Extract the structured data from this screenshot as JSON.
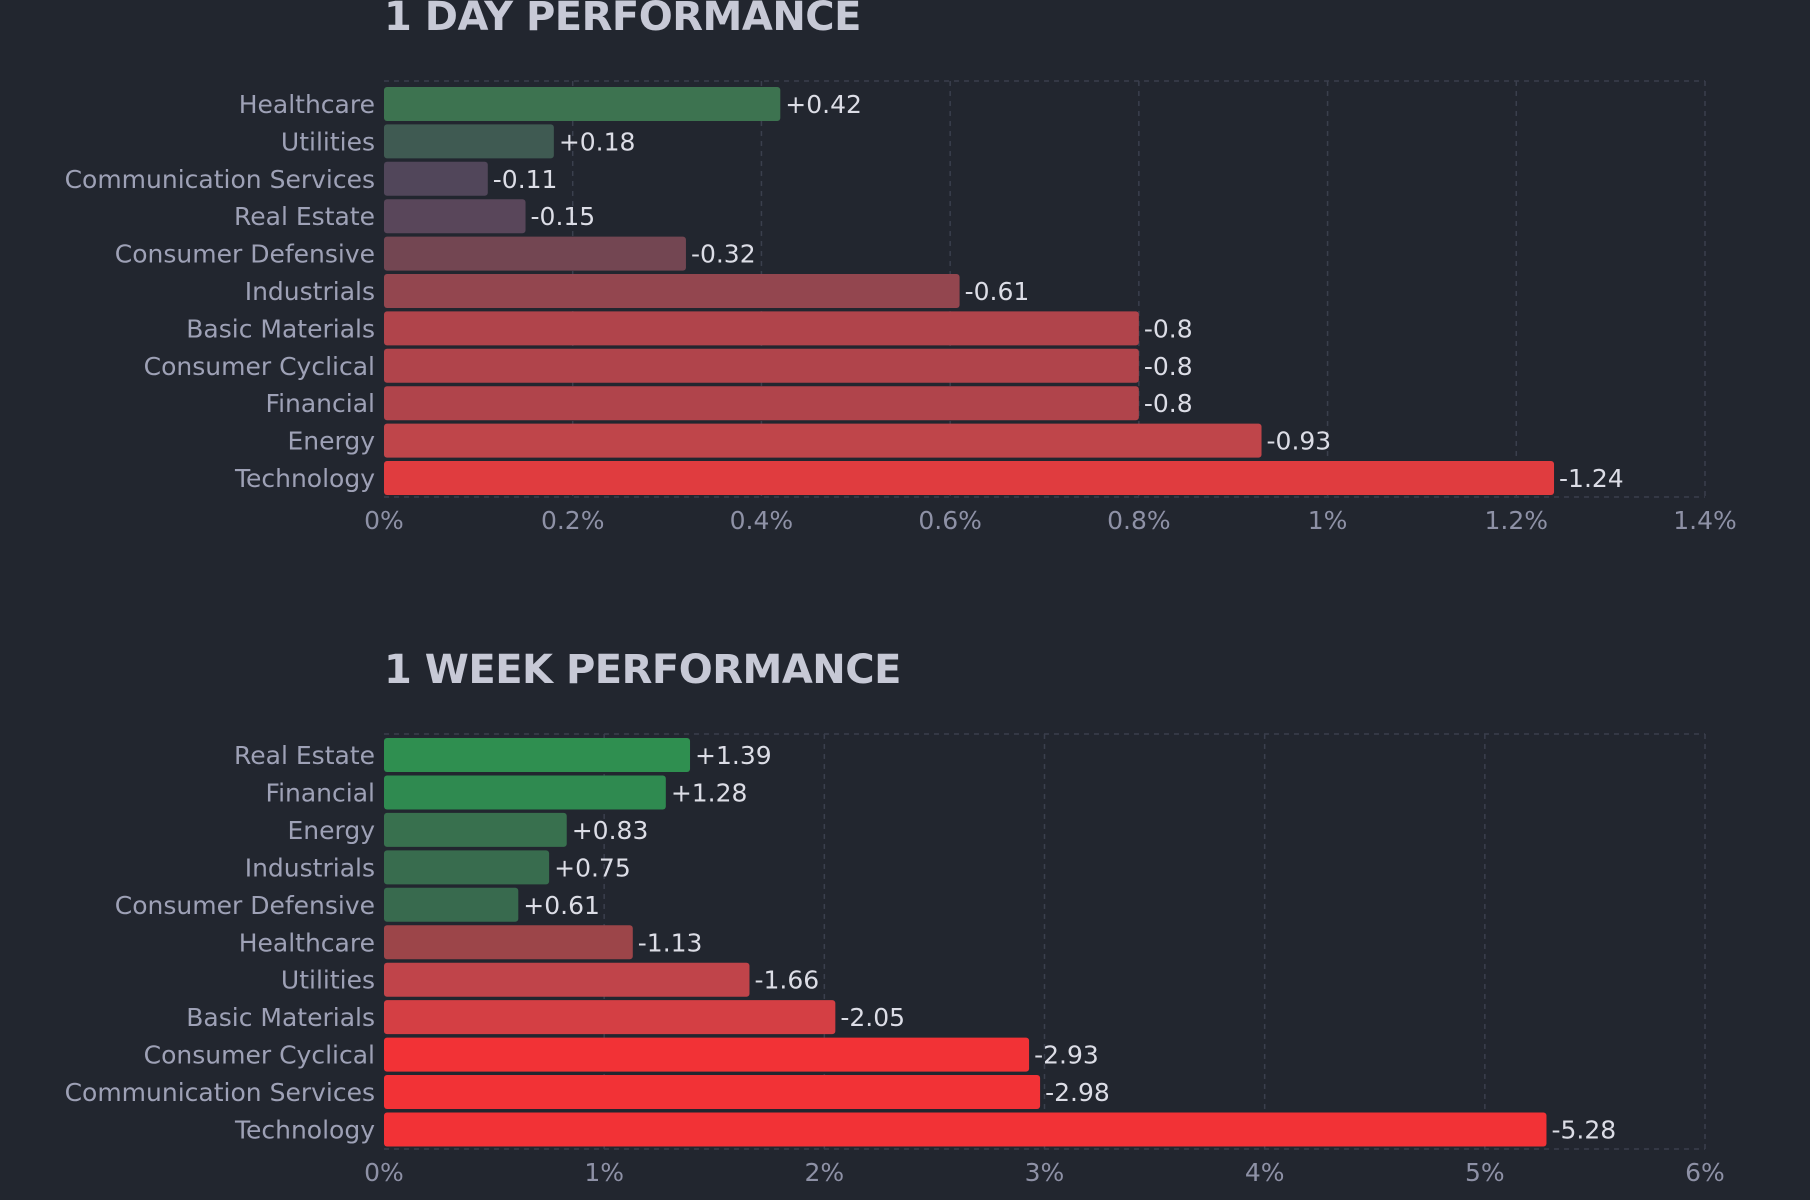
{
  "chart_data": [
    {
      "type": "bar",
      "orientation": "horizontal",
      "title": "1 DAY PERFORMANCE",
      "categories": [
        "Healthcare",
        "Utilities",
        "Communication Services",
        "Real Estate",
        "Consumer Defensive",
        "Industrials",
        "Basic Materials",
        "Consumer Cyclical",
        "Financial",
        "Energy",
        "Technology"
      ],
      "values": [
        0.42,
        0.18,
        -0.11,
        -0.15,
        -0.32,
        -0.61,
        -0.8,
        -0.8,
        -0.8,
        -0.93,
        -1.24
      ],
      "value_labels": [
        "+0.42",
        "+0.18",
        "-0.11",
        "-0.15",
        "-0.32",
        "-0.61",
        "-0.8",
        "-0.8",
        "-0.8",
        "-0.93",
        "-1.24"
      ],
      "bar_colors": [
        "#3d7350",
        "#3f5a52",
        "#51465a",
        "#59465a",
        "#734652",
        "#93464f",
        "#b0444b",
        "#b0444b",
        "#b0444b",
        "#bf454a",
        "#e03c3f"
      ],
      "xlim": [
        0,
        1.4
      ],
      "x_ticks": [
        0,
        0.2,
        0.4,
        0.6,
        0.8,
        1,
        1.2,
        1.4
      ],
      "x_tick_labels": [
        "0%",
        "0.2%",
        "0.4%",
        "0.6%",
        "0.8%",
        "1%",
        "1.2%",
        "1.4%"
      ],
      "grid": true,
      "legend": "none"
    },
    {
      "type": "bar",
      "orientation": "horizontal",
      "title": "1 WEEK PERFORMANCE",
      "categories": [
        "Real Estate",
        "Financial",
        "Energy",
        "Industrials",
        "Consumer Defensive",
        "Healthcare",
        "Utilities",
        "Basic Materials",
        "Consumer Cyclical",
        "Communication Services",
        "Technology"
      ],
      "values": [
        1.39,
        1.28,
        0.83,
        0.75,
        0.61,
        -1.13,
        -1.66,
        -2.05,
        -2.93,
        -2.98,
        -5.28
      ],
      "value_labels": [
        "+1.39",
        "+1.28",
        "+0.83",
        "+0.75",
        "+0.61",
        "-1.13",
        "-1.66",
        "-2.05",
        "-2.93",
        "-2.98",
        "-5.28"
      ],
      "bar_colors": [
        "#2f8f50",
        "#2f8a50",
        "#38704e",
        "#386c4e",
        "#386a4e",
        "#9c4549",
        "#c0444a",
        "#d43f44",
        "#f23236",
        "#f23236",
        "#f23236"
      ],
      "xlim": [
        0,
        6
      ],
      "x_ticks": [
        0,
        1,
        2,
        3,
        4,
        5,
        6
      ],
      "x_tick_labels": [
        "0%",
        "1%",
        "2%",
        "3%",
        "4%",
        "5%",
        "6%"
      ],
      "grid": true,
      "legend": "none"
    }
  ]
}
